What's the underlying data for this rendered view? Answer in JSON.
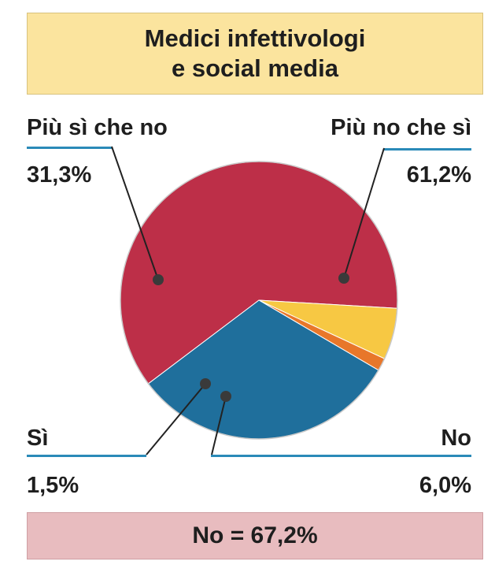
{
  "chart_data": {
    "type": "pie",
    "title_lines": [
      "Medici infettivologi",
      "e social media"
    ],
    "summary": "No = 67,2%",
    "slices": [
      {
        "name": "Più no che sì",
        "label": "61,2%",
        "value": 61.2,
        "color": "#bd2f48"
      },
      {
        "name": "No",
        "label": "6,0%",
        "value": 6.0,
        "color": "#f7c843"
      },
      {
        "name": "Sì",
        "label": "1,5%",
        "value": 1.5,
        "color": "#e8772a"
      },
      {
        "name": "Più sì che no",
        "label": "31,3%",
        "value": 31.3,
        "color": "#1f6f9c"
      }
    ]
  }
}
